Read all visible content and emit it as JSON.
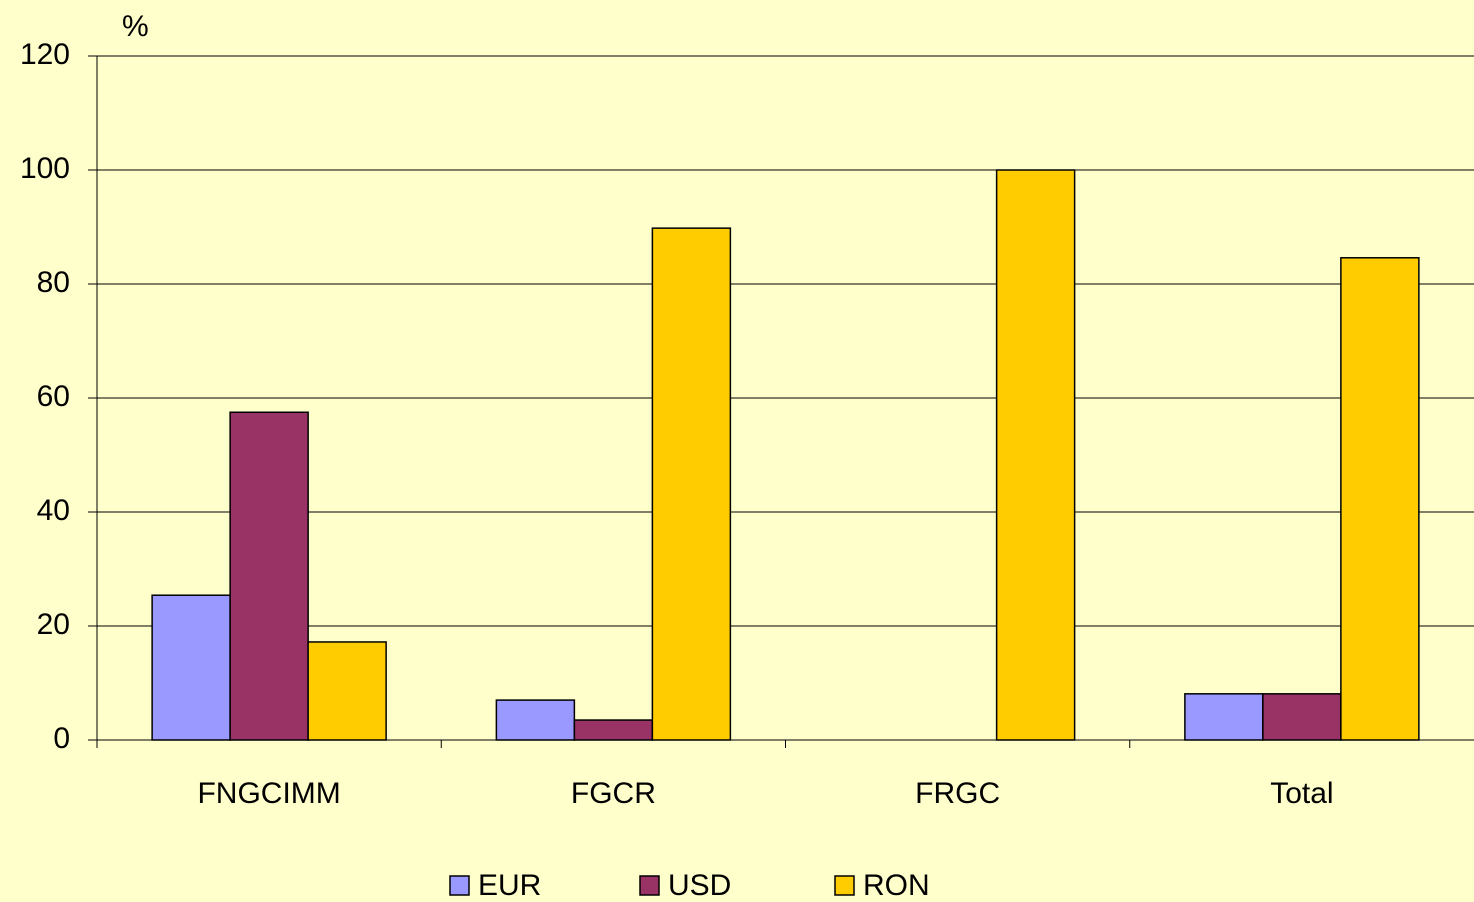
{
  "chart_data": {
    "type": "bar",
    "y_axis_label": "%",
    "categories": [
      "FNGCIMM",
      "FGCR",
      "FRGC",
      "Total"
    ],
    "series": [
      {
        "name": "EUR",
        "color": "#9999ff",
        "values": [
          25.4,
          7.0,
          0,
          8.1
        ]
      },
      {
        "name": "USD",
        "color": "#993366",
        "values": [
          57.5,
          3.5,
          0,
          8.1
        ]
      },
      {
        "name": "RON",
        "color": "#ffcc00",
        "values": [
          17.2,
          89.8,
          100,
          84.6
        ]
      }
    ],
    "ylim": [
      0,
      120
    ],
    "yticks": [
      0,
      20,
      40,
      60,
      80,
      100,
      120
    ],
    "grid": true,
    "legend": "bottom"
  }
}
